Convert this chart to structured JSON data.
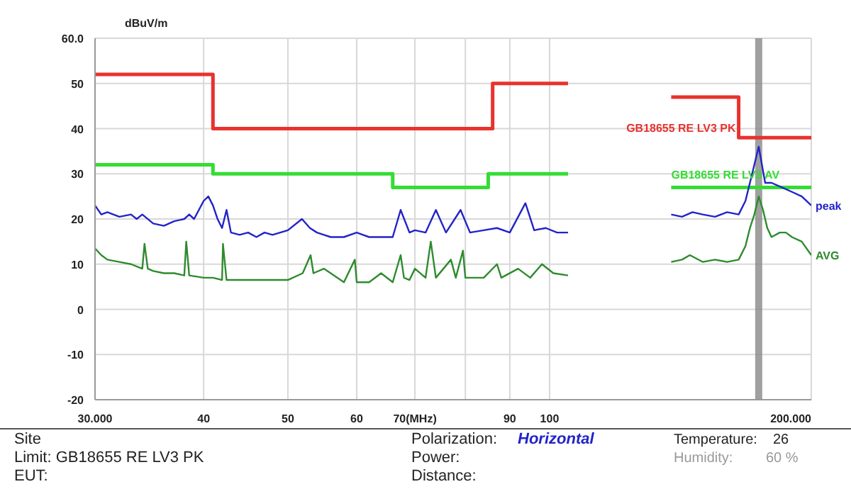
{
  "chart_data": {
    "type": "line",
    "ylabel": "dBuV/m",
    "log": "x",
    "grid": true,
    "legend": false,
    "marker": "none",
    "xlim": [
      30,
      200
    ],
    "xticks": [
      {
        "value": 30,
        "label": "30.000"
      },
      40,
      50,
      60,
      {
        "value": 70,
        "label": "70(MHz)"
      },
      {
        "value": 80,
        "label": null
      },
      90,
      100,
      {
        "value": 200,
        "label": "200.000"
      }
    ],
    "ylim": [
      -20,
      60
    ],
    "yticks": [
      -20,
      -10,
      0,
      10,
      20,
      30,
      40,
      50,
      {
        "value": 60,
        "label": "60.0"
      }
    ],
    "series": [
      {
        "name": "GB18655 RE LV3 PK",
        "type": "step",
        "color": "#e8322e",
        "x": [
          30,
          41,
          86,
          105,
          120,
          138,
          165,
          200
        ],
        "values": [
          52,
          40,
          50,
          50,
          null,
          47,
          38,
          38
        ]
      },
      {
        "name": "GB18655 RE LV3 AV",
        "type": "step",
        "color": "#33dd33",
        "x": [
          30,
          41,
          66,
          85,
          105,
          120,
          138,
          200
        ],
        "values": [
          32,
          30,
          27,
          30,
          30,
          null,
          27,
          27
        ]
      },
      {
        "name": "peak",
        "color": "#2323c8",
        "x": [
          30,
          30.5,
          31,
          32,
          33,
          33.5,
          34,
          35,
          36,
          37,
          38,
          38.5,
          39,
          40,
          40.5,
          41,
          41.5,
          42,
          42.5,
          43,
          44,
          45,
          46,
          47,
          48,
          49,
          50,
          51.9,
          53,
          54,
          55,
          56,
          58,
          60,
          62,
          64,
          66,
          67.4,
          69,
          70,
          72,
          74,
          76,
          79,
          81,
          84,
          87,
          90,
          93.8,
          96,
          99,
          102,
          105,
          120,
          138,
          142,
          146,
          150,
          155,
          160,
          165,
          168,
          171,
          174,
          177,
          180,
          185,
          190,
          195,
          200
        ],
        "values": [
          23,
          21,
          21.5,
          20.5,
          21,
          20,
          21,
          19,
          18.5,
          19.5,
          20,
          21,
          20,
          24,
          25,
          23,
          20,
          18,
          22,
          17,
          16.5,
          17,
          16,
          17,
          16.5,
          17,
          17.5,
          20,
          18,
          17,
          16.5,
          16,
          16,
          17,
          16,
          16,
          16,
          22,
          17,
          17.5,
          17,
          22,
          17,
          22,
          17,
          17.5,
          18,
          17,
          23.5,
          17.5,
          18,
          17,
          17,
          null,
          21,
          20.5,
          21.5,
          21,
          20.5,
          21.5,
          21,
          24,
          30,
          36,
          28,
          28,
          27,
          26,
          25,
          23
        ]
      },
      {
        "name": "AVG",
        "color": "#2e8b2e",
        "x": [
          30,
          30.5,
          31,
          32,
          33,
          34,
          34.2,
          34.5,
          35,
          36,
          37,
          38,
          38.2,
          38.5,
          40,
          41,
          42,
          42.1,
          42.5,
          44,
          46,
          48,
          50,
          52,
          53.1,
          53.5,
          55,
          56,
          58,
          59.7,
          60,
          62,
          64,
          66,
          67.4,
          68,
          69,
          70,
          72,
          73,
          74,
          77,
          78,
          79.5,
          80,
          84,
          87,
          88,
          92,
          95,
          98,
          101,
          105,
          120,
          138,
          142,
          145,
          150,
          155,
          160,
          165,
          168,
          170,
          172,
          174,
          176,
          178,
          180,
          184,
          187,
          190,
          195,
          200
        ],
        "values": [
          13.5,
          12,
          11,
          10.5,
          10,
          9,
          14.5,
          9,
          8.5,
          8,
          8,
          7.5,
          15,
          7.5,
          7,
          7,
          6.5,
          14.5,
          6.5,
          6.5,
          6.5,
          6.5,
          6.5,
          8,
          12,
          8,
          9,
          8,
          6,
          11,
          6,
          6,
          8,
          6,
          12,
          7,
          6.5,
          9,
          7,
          15,
          7,
          11,
          7,
          13,
          7,
          7,
          10,
          7,
          9,
          7,
          10,
          8,
          7.5,
          null,
          10.5,
          11,
          12,
          10.5,
          11,
          10.5,
          11,
          14,
          18,
          21,
          25,
          22,
          18,
          16,
          17,
          17,
          16,
          15,
          12
        ]
      }
    ],
    "ref_lines": [
      {
        "axis": "x",
        "value": 174,
        "color": "#888888"
      }
    ],
    "annotations": [
      "Site",
      "Limit:  GB18655 RE LV3 PK",
      "EUT:",
      "Polarization:",
      "Horizontal",
      "Power:",
      "Distance:",
      "Temperature:",
      "26",
      "Humidity:",
      "60 %"
    ]
  }
}
